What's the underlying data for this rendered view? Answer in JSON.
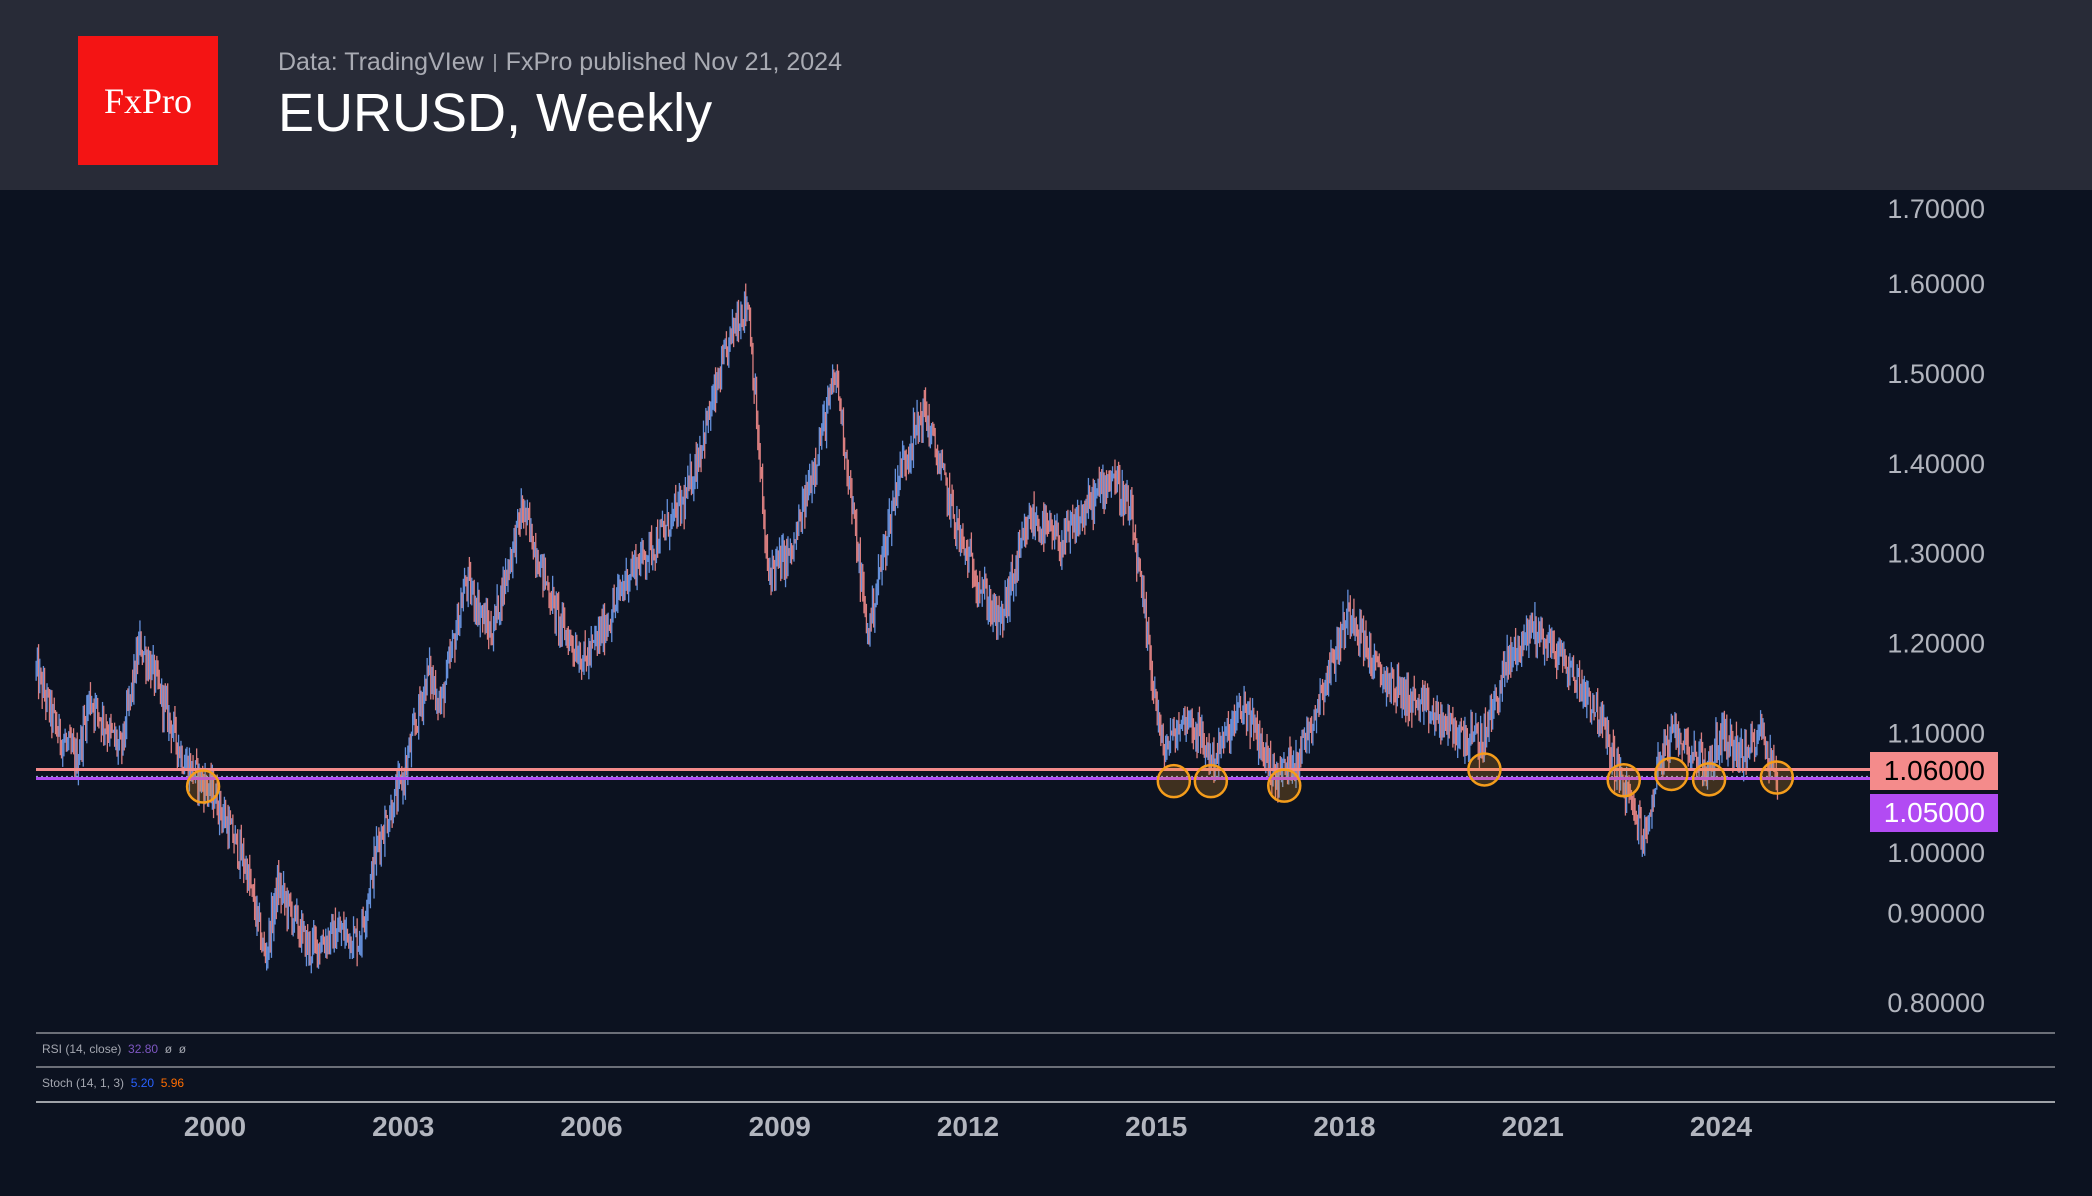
{
  "header": {
    "logo_text": "FxPro",
    "source": "Data: TradingVIew",
    "published": "FxPro published Nov 21, 2024",
    "title": "EURUSD, Weekly"
  },
  "indicators": {
    "rsi": {
      "label": "RSI (14, close)",
      "value": "32.80",
      "extra1": "ø",
      "extra2": "ø",
      "color": "#7e57c2"
    },
    "stoch": {
      "label": "Stoch (14, 1, 3)",
      "k": "5.20",
      "d": "5.96",
      "k_color": "#2962ff",
      "d_color": "#ff6d00"
    }
  },
  "chart_data": {
    "type": "candlestick",
    "title": "EURUSD, Weekly",
    "xlabel": "",
    "ylabel": "",
    "xlim": [
      1997.15,
      2026.9
    ],
    "ylim": [
      0.77,
      1.72
    ],
    "x_ticks": [
      "2000",
      "2003",
      "2006",
      "2009",
      "2012",
      "2015",
      "2018",
      "2021",
      "2024"
    ],
    "x_tick_values": [
      2000,
      2003,
      2006,
      2009,
      2012,
      2015,
      2018,
      2021,
      2024
    ],
    "y_ticks": [
      "1.70000",
      "1.60000",
      "1.50000",
      "1.40000",
      "1.30000",
      "1.20000",
      "1.10000",
      "1.00000",
      "0.90000",
      "0.80000"
    ],
    "y_tick_values": [
      1.7,
      1.6,
      1.5,
      1.4,
      1.3,
      1.2,
      1.1,
      1.0,
      0.9,
      0.8
    ],
    "grid": false,
    "up_color": "#6f9ef0",
    "down_color": "#f28b8b",
    "price_path": {
      "x": [
        1997.15,
        1997.5,
        1997.8,
        1998.0,
        1998.5,
        1998.8,
        1999.0,
        1999.5,
        2000.0,
        2000.5,
        2000.8,
        2001.0,
        2001.5,
        2002.0,
        2002.3,
        2002.6,
        2003.0,
        2003.4,
        2003.6,
        2004.0,
        2004.4,
        2004.9,
        2005.5,
        2005.9,
        2006.3,
        2006.6,
        2007.0,
        2007.5,
        2007.9,
        2008.3,
        2008.5,
        2008.8,
        2009.2,
        2009.9,
        2010.4,
        2010.9,
        2011.3,
        2011.9,
        2012.5,
        2013.0,
        2013.5,
        2014.3,
        2014.6,
        2015.1,
        2015.5,
        2015.9,
        2016.4,
        2016.9,
        2017.3,
        2018.1,
        2018.5,
        2019.0,
        2019.8,
        2020.2,
        2020.6,
        2021.0,
        2021.5,
        2022.0,
        2022.4,
        2022.8,
        2023.0,
        2023.3,
        2023.8,
        2024.0,
        2024.4,
        2024.6,
        2024.9
      ],
      "y": [
        1.17,
        1.1,
        1.07,
        1.14,
        1.08,
        1.2,
        1.17,
        1.07,
        1.03,
        0.95,
        0.85,
        0.93,
        0.86,
        0.88,
        0.87,
        0.98,
        1.05,
        1.17,
        1.13,
        1.27,
        1.21,
        1.35,
        1.22,
        1.18,
        1.23,
        1.28,
        1.31,
        1.36,
        1.46,
        1.56,
        1.58,
        1.28,
        1.3,
        1.5,
        1.21,
        1.39,
        1.46,
        1.31,
        1.22,
        1.34,
        1.31,
        1.39,
        1.34,
        1.08,
        1.12,
        1.07,
        1.13,
        1.05,
        1.08,
        1.24,
        1.17,
        1.14,
        1.1,
        1.09,
        1.18,
        1.22,
        1.18,
        1.13,
        1.05,
        0.98,
        1.07,
        1.1,
        1.06,
        1.1,
        1.07,
        1.11,
        1.05
      ]
    },
    "levels": [
      {
        "label": "1.06000",
        "value": 1.06,
        "color": "#f48b8b",
        "text_color": "#000000"
      },
      {
        "label": "1.05000",
        "value": 1.05,
        "color": "#b24bf3",
        "text_color": "#ffffff"
      }
    ],
    "current_price": 1.052,
    "annotations": {
      "type": "circles",
      "color": "#f59d1b",
      "points": [
        [
          1999.81,
          1.041
        ],
        [
          2015.28,
          1.047
        ],
        [
          2015.87,
          1.047
        ],
        [
          2017.04,
          1.042
        ],
        [
          2020.23,
          1.06
        ],
        [
          2022.45,
          1.048
        ],
        [
          2023.21,
          1.055
        ],
        [
          2023.81,
          1.049
        ],
        [
          2024.89,
          1.051
        ]
      ]
    }
  }
}
